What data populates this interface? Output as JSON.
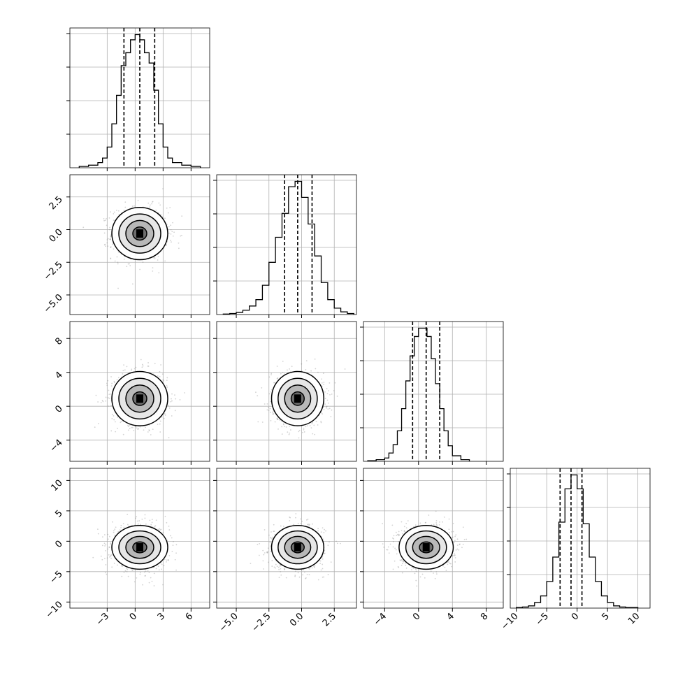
{
  "chart_data": {
    "type": "corner",
    "grid": true,
    "panel_order": [
      0,
      1,
      2,
      3
    ],
    "parameters": [
      {
        "index": 0,
        "range": [
          -7,
          8
        ],
        "ticks": [
          -3,
          0,
          3,
          6
        ],
        "tick_labels": [
          "−3",
          "0",
          "3",
          "6"
        ],
        "quantiles": [
          -1.2,
          0.5,
          2.1
        ],
        "mean": 0.5,
        "sd": 1.5
      },
      {
        "index": 1,
        "range": [
          -6.5,
          4.2
        ],
        "ticks": [
          -5.0,
          -2.5,
          0.0,
          2.5
        ],
        "tick_labels": [
          "−5.0",
          "−2.5",
          "0.0",
          "2.5"
        ],
        "quantiles": [
          -1.3,
          -0.3,
          0.8
        ],
        "mean": -0.3,
        "sd": 1.0
      },
      {
        "index": 2,
        "range": [
          -6.5,
          10
        ],
        "ticks": [
          -4,
          0,
          4,
          8
        ],
        "tick_labels": [
          "−4",
          "0",
          "4",
          "8"
        ],
        "quantiles": [
          -0.7,
          0.9,
          2.5
        ],
        "mean": 0.9,
        "sd": 1.6
      },
      {
        "index": 3,
        "range": [
          -11,
          12
        ],
        "ticks": [
          -10,
          -5,
          0,
          5,
          10
        ],
        "tick_labels": [
          "−10",
          "−5",
          "0",
          "5",
          "10"
        ],
        "quantiles": [
          -2.8,
          -1.0,
          0.8
        ],
        "mean": -1.0,
        "sd": 1.8
      }
    ],
    "histograms": [
      {
        "param": 0,
        "bin_edges": [
          -6.0,
          -5.0,
          -4.0,
          -3.5,
          -3.0,
          -2.5,
          -2.0,
          -1.5,
          -1.0,
          -0.5,
          0.0,
          0.5,
          1.0,
          1.5,
          2.0,
          2.5,
          3.0,
          3.5,
          4.0,
          5.0,
          6.0,
          7.0
        ],
        "counts": [
          2,
          4,
          8,
          15,
          32,
          68,
          112,
          158,
          178,
          198,
          206,
          198,
          178,
          162,
          120,
          68,
          32,
          15,
          8,
          4,
          2
        ]
      },
      {
        "param": 1,
        "bin_edges": [
          -6.0,
          -5.5,
          -5.0,
          -4.5,
          -4.0,
          -3.5,
          -3.0,
          -2.5,
          -2.0,
          -1.5,
          -1.0,
          -0.5,
          0.0,
          0.5,
          1.0,
          1.5,
          2.0,
          2.5,
          3.0,
          3.5,
          4.0
        ],
        "counts": [
          1,
          2,
          4,
          8,
          16,
          28,
          55,
          98,
          145,
          190,
          240,
          250,
          220,
          170,
          110,
          60,
          28,
          12,
          5,
          2
        ]
      },
      {
        "param": 2,
        "bin_edges": [
          -6.0,
          -5.0,
          -4.0,
          -3.5,
          -3.0,
          -2.5,
          -2.0,
          -1.5,
          -1.0,
          -0.5,
          0.0,
          0.5,
          1.0,
          1.5,
          2.0,
          2.5,
          3.0,
          3.5,
          4.0,
          5.0,
          6.0
        ],
        "counts": [
          1,
          3,
          6,
          15,
          30,
          55,
          95,
          145,
          190,
          225,
          240,
          240,
          225,
          185,
          140,
          95,
          55,
          28,
          10,
          3
        ]
      },
      {
        "param": 3,
        "bin_edges": [
          -10.0,
          -9.0,
          -8.0,
          -7.0,
          -6.0,
          -5.0,
          -4.0,
          -3.0,
          -2.0,
          -1.0,
          0.0,
          1.0,
          2.0,
          3.0,
          4.0,
          5.0,
          6.0,
          7.0,
          8.0,
          9.0,
          10.0
        ],
        "counts": [
          1,
          2,
          4,
          10,
          22,
          48,
          92,
          155,
          215,
          240,
          215,
          152,
          92,
          48,
          22,
          10,
          4,
          2,
          1,
          1
        ]
      }
    ],
    "pairs": [
      {
        "x_param": 0,
        "y_param": 1,
        "x_center": 0.5,
        "y_center": -0.3,
        "x_spread": 1.5,
        "y_spread": 1.0
      },
      {
        "x_param": 0,
        "y_param": 2,
        "x_center": 0.5,
        "y_center": 0.9,
        "x_spread": 1.5,
        "y_spread": 1.6
      },
      {
        "x_param": 1,
        "y_param": 2,
        "x_center": -0.3,
        "y_center": 0.9,
        "x_spread": 1.0,
        "y_spread": 1.6
      },
      {
        "x_param": 0,
        "y_param": 3,
        "x_center": 0.5,
        "y_center": -1.0,
        "x_spread": 1.5,
        "y_spread": 1.8
      },
      {
        "x_param": 1,
        "y_param": 3,
        "x_center": -0.3,
        "y_center": -1.0,
        "x_spread": 1.0,
        "y_spread": 1.8
      },
      {
        "x_param": 2,
        "y_param": 3,
        "x_center": 0.9,
        "y_center": -1.0,
        "x_spread": 1.6,
        "y_spread": 1.8
      }
    ],
    "contour_levels_sigma": [
      0.5,
      1.0,
      1.5,
      2.0
    ],
    "colors": {
      "line": "#000000",
      "grid": "#b0b0b0",
      "points": "#808080",
      "density_dark": "#000000"
    }
  }
}
